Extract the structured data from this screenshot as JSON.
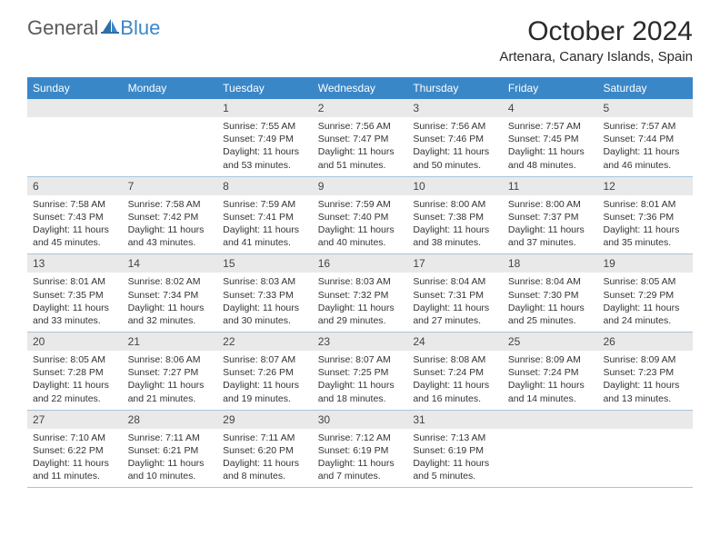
{
  "brand": {
    "part1": "General",
    "part2": "Blue"
  },
  "title": "October 2024",
  "location": "Artenara, Canary Islands, Spain",
  "colors": {
    "header_bg": "#3a87c8",
    "header_text": "#ffffff",
    "daynum_bg": "#e9e9e9",
    "border": "#a9c4dc",
    "logo_gray": "#5a5a5a",
    "logo_blue": "#3a87c8"
  },
  "day_headers": [
    "Sunday",
    "Monday",
    "Tuesday",
    "Wednesday",
    "Thursday",
    "Friday",
    "Saturday"
  ],
  "weeks": [
    [
      null,
      null,
      {
        "n": "1",
        "sr": "7:55 AM",
        "ss": "7:49 PM",
        "dh": "11",
        "dm": "53"
      },
      {
        "n": "2",
        "sr": "7:56 AM",
        "ss": "7:47 PM",
        "dh": "11",
        "dm": "51"
      },
      {
        "n": "3",
        "sr": "7:56 AM",
        "ss": "7:46 PM",
        "dh": "11",
        "dm": "50"
      },
      {
        "n": "4",
        "sr": "7:57 AM",
        "ss": "7:45 PM",
        "dh": "11",
        "dm": "48"
      },
      {
        "n": "5",
        "sr": "7:57 AM",
        "ss": "7:44 PM",
        "dh": "11",
        "dm": "46"
      }
    ],
    [
      {
        "n": "6",
        "sr": "7:58 AM",
        "ss": "7:43 PM",
        "dh": "11",
        "dm": "45"
      },
      {
        "n": "7",
        "sr": "7:58 AM",
        "ss": "7:42 PM",
        "dh": "11",
        "dm": "43"
      },
      {
        "n": "8",
        "sr": "7:59 AM",
        "ss": "7:41 PM",
        "dh": "11",
        "dm": "41"
      },
      {
        "n": "9",
        "sr": "7:59 AM",
        "ss": "7:40 PM",
        "dh": "11",
        "dm": "40"
      },
      {
        "n": "10",
        "sr": "8:00 AM",
        "ss": "7:38 PM",
        "dh": "11",
        "dm": "38"
      },
      {
        "n": "11",
        "sr": "8:00 AM",
        "ss": "7:37 PM",
        "dh": "11",
        "dm": "37"
      },
      {
        "n": "12",
        "sr": "8:01 AM",
        "ss": "7:36 PM",
        "dh": "11",
        "dm": "35"
      }
    ],
    [
      {
        "n": "13",
        "sr": "8:01 AM",
        "ss": "7:35 PM",
        "dh": "11",
        "dm": "33"
      },
      {
        "n": "14",
        "sr": "8:02 AM",
        "ss": "7:34 PM",
        "dh": "11",
        "dm": "32"
      },
      {
        "n": "15",
        "sr": "8:03 AM",
        "ss": "7:33 PM",
        "dh": "11",
        "dm": "30"
      },
      {
        "n": "16",
        "sr": "8:03 AM",
        "ss": "7:32 PM",
        "dh": "11",
        "dm": "29"
      },
      {
        "n": "17",
        "sr": "8:04 AM",
        "ss": "7:31 PM",
        "dh": "11",
        "dm": "27"
      },
      {
        "n": "18",
        "sr": "8:04 AM",
        "ss": "7:30 PM",
        "dh": "11",
        "dm": "25"
      },
      {
        "n": "19",
        "sr": "8:05 AM",
        "ss": "7:29 PM",
        "dh": "11",
        "dm": "24"
      }
    ],
    [
      {
        "n": "20",
        "sr": "8:05 AM",
        "ss": "7:28 PM",
        "dh": "11",
        "dm": "22"
      },
      {
        "n": "21",
        "sr": "8:06 AM",
        "ss": "7:27 PM",
        "dh": "11",
        "dm": "21"
      },
      {
        "n": "22",
        "sr": "8:07 AM",
        "ss": "7:26 PM",
        "dh": "11",
        "dm": "19"
      },
      {
        "n": "23",
        "sr": "8:07 AM",
        "ss": "7:25 PM",
        "dh": "11",
        "dm": "18"
      },
      {
        "n": "24",
        "sr": "8:08 AM",
        "ss": "7:24 PM",
        "dh": "11",
        "dm": "16"
      },
      {
        "n": "25",
        "sr": "8:09 AM",
        "ss": "7:24 PM",
        "dh": "11",
        "dm": "14"
      },
      {
        "n": "26",
        "sr": "8:09 AM",
        "ss": "7:23 PM",
        "dh": "11",
        "dm": "13"
      }
    ],
    [
      {
        "n": "27",
        "sr": "7:10 AM",
        "ss": "6:22 PM",
        "dh": "11",
        "dm": "11"
      },
      {
        "n": "28",
        "sr": "7:11 AM",
        "ss": "6:21 PM",
        "dh": "11",
        "dm": "10"
      },
      {
        "n": "29",
        "sr": "7:11 AM",
        "ss": "6:20 PM",
        "dh": "11",
        "dm": "8"
      },
      {
        "n": "30",
        "sr": "7:12 AM",
        "ss": "6:19 PM",
        "dh": "11",
        "dm": "7"
      },
      {
        "n": "31",
        "sr": "7:13 AM",
        "ss": "6:19 PM",
        "dh": "11",
        "dm": "5"
      },
      null,
      null
    ]
  ],
  "labels": {
    "sunrise": "Sunrise:",
    "sunset": "Sunset:",
    "daylight_prefix": "Daylight:",
    "hours_word": "hours",
    "and_word": "and",
    "minutes_word": "minutes."
  }
}
